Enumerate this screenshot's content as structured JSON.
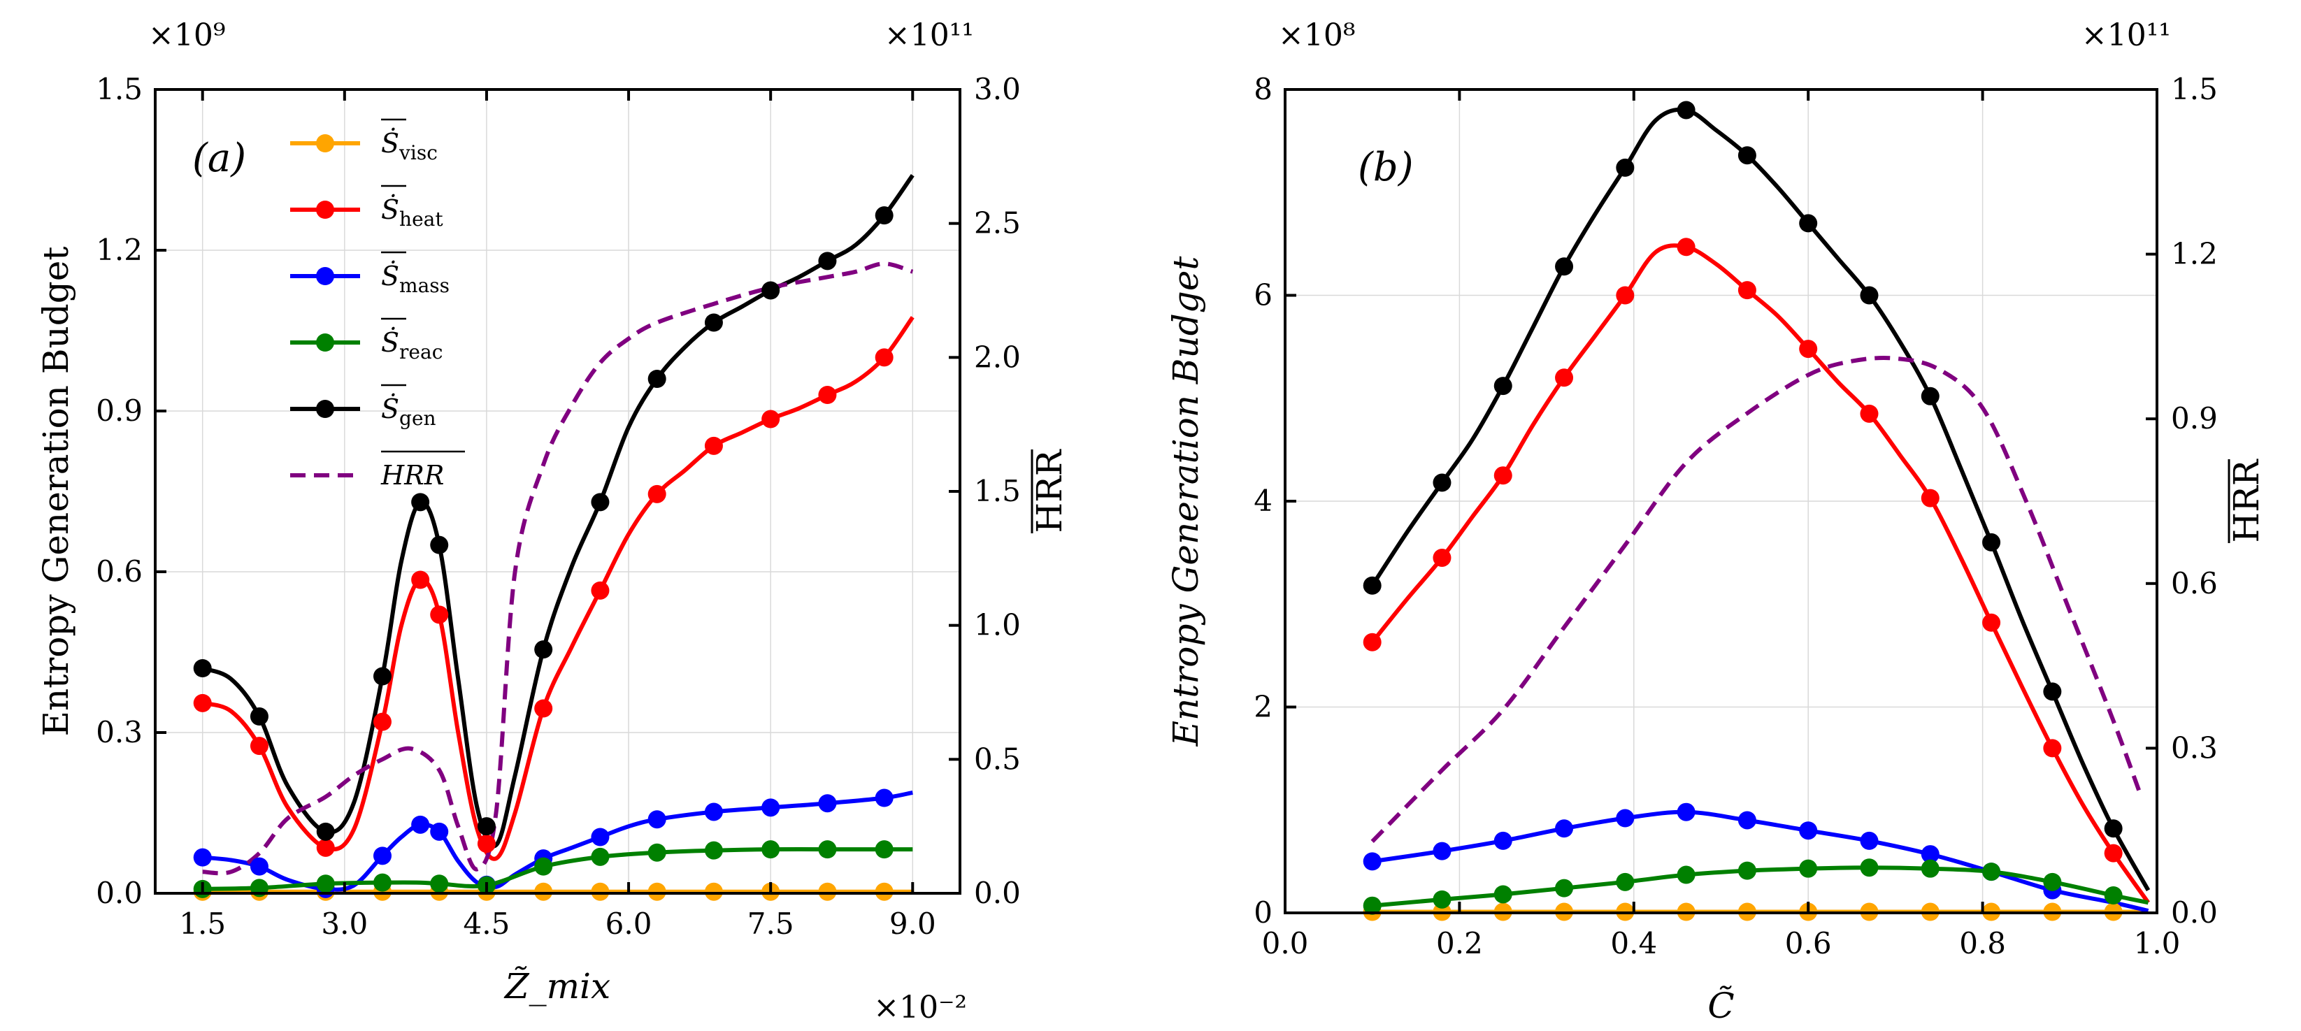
{
  "chart_data": [
    {
      "panel": "(a)",
      "type": "line",
      "xlabel": "Z̃_mix",
      "ylabel": "Entropy Generation Budget",
      "y2label": "HRR",
      "x_scale_label": "×10⁻²",
      "y_scale_label": "×10⁹",
      "y2_scale_label": "×10¹¹",
      "xlim": [
        1.0,
        9.5
      ],
      "ylim": [
        0,
        1.5
      ],
      "y2lim": [
        0,
        3.0
      ],
      "xticks": [
        1.5,
        3.0,
        4.5,
        6.0,
        7.5,
        9.0
      ],
      "xtick_labels": [
        "1.5",
        "3.0",
        "4.5",
        "6.0",
        "7.5",
        "9.0"
      ],
      "yticks": [
        0.0,
        0.3,
        0.6,
        0.9,
        1.2,
        1.5
      ],
      "ytick_labels": [
        "0.0",
        "0.3",
        "0.6",
        "0.9",
        "1.2",
        "1.5"
      ],
      "y2ticks": [
        0.0,
        0.5,
        1.0,
        1.5,
        2.0,
        2.5,
        3.0
      ],
      "y2tick_labels": [
        "0.0",
        "0.5",
        "1.0",
        "1.5",
        "2.0",
        "2.5",
        "3.0"
      ],
      "legend": {
        "location": "top-left",
        "entries": [
          {
            "main": "Ṡ",
            "sub": "visc",
            "color": "#ffa500",
            "style": "line-marker"
          },
          {
            "main": "Ṡ",
            "sub": "heat",
            "color": "#ff0000",
            "style": "line-marker"
          },
          {
            "main": "Ṡ",
            "sub": "mass",
            "color": "#0000ff",
            "style": "line-marker"
          },
          {
            "main": "Ṡ",
            "sub": "reac",
            "color": "#008000",
            "style": "line-marker"
          },
          {
            "main": "Ṡ",
            "sub": "gen",
            "color": "#000000",
            "style": "line-marker"
          },
          {
            "main": "HRR",
            "sub": "",
            "color": "#800080",
            "style": "dashed"
          }
        ]
      },
      "series": [
        {
          "name": "S_visc",
          "color": "#ffa500",
          "axis": "left",
          "x": [
            1.5,
            2.1,
            2.8,
            3.4,
            4.0,
            4.5,
            5.1,
            5.7,
            6.3,
            6.9,
            7.5,
            8.1,
            8.7,
            9.0
          ],
          "y": [
            0.003,
            0.003,
            0.003,
            0.003,
            0.003,
            0.003,
            0.003,
            0.003,
            0.003,
            0.003,
            0.003,
            0.003,
            0.003,
            0.003
          ],
          "markers": [
            1.5,
            2.1,
            2.8,
            3.4,
            4.0,
            4.5,
            5.1,
            5.7,
            6.3,
            6.9,
            7.5,
            8.1,
            8.7
          ]
        },
        {
          "name": "S_heat",
          "color": "#ff0000",
          "axis": "left",
          "x": [
            1.5,
            1.8,
            2.1,
            2.4,
            2.8,
            3.1,
            3.4,
            3.6,
            3.8,
            4.0,
            4.2,
            4.4,
            4.6,
            4.8,
            5.1,
            5.4,
            5.7,
            6.0,
            6.3,
            6.6,
            6.9,
            7.2,
            7.5,
            7.8,
            8.1,
            8.4,
            8.7,
            9.0
          ],
          "y": [
            0.355,
            0.34,
            0.275,
            0.16,
            0.085,
            0.12,
            0.32,
            0.5,
            0.585,
            0.52,
            0.3,
            0.12,
            0.065,
            0.15,
            0.345,
            0.46,
            0.565,
            0.67,
            0.745,
            0.79,
            0.835,
            0.86,
            0.885,
            0.905,
            0.93,
            0.955,
            1.0,
            1.075
          ],
          "markers": [
            1.5,
            2.1,
            2.8,
            3.4,
            3.8,
            4.0,
            4.5,
            5.1,
            5.7,
            6.3,
            6.9,
            7.5,
            8.1,
            8.7
          ]
        },
        {
          "name": "S_mass",
          "color": "#0000ff",
          "axis": "left",
          "x": [
            1.5,
            1.8,
            2.1,
            2.4,
            2.8,
            3.1,
            3.4,
            3.6,
            3.8,
            4.0,
            4.2,
            4.4,
            4.6,
            4.8,
            5.1,
            5.4,
            5.7,
            6.0,
            6.3,
            6.9,
            7.5,
            8.1,
            8.7,
            9.0
          ],
          "y": [
            0.067,
            0.062,
            0.05,
            0.025,
            0.008,
            0.015,
            0.07,
            0.105,
            0.128,
            0.115,
            0.06,
            0.02,
            0.012,
            0.035,
            0.065,
            0.085,
            0.105,
            0.125,
            0.138,
            0.152,
            0.16,
            0.168,
            0.178,
            0.188
          ],
          "markers": [
            1.5,
            2.1,
            2.8,
            3.4,
            3.8,
            4.0,
            4.5,
            5.1,
            5.7,
            6.3,
            6.9,
            7.5,
            8.1,
            8.7
          ]
        },
        {
          "name": "S_reac",
          "color": "#008000",
          "axis": "left",
          "x": [
            1.5,
            2.1,
            2.8,
            3.4,
            3.8,
            4.0,
            4.5,
            5.1,
            5.7,
            6.3,
            6.9,
            7.5,
            8.1,
            8.7,
            9.0
          ],
          "y": [
            0.008,
            0.01,
            0.018,
            0.02,
            0.02,
            0.018,
            0.015,
            0.05,
            0.068,
            0.076,
            0.08,
            0.082,
            0.082,
            0.082,
            0.082
          ],
          "markers": [
            1.5,
            2.1,
            2.8,
            3.4,
            4.0,
            4.5,
            5.1,
            5.7,
            6.3,
            6.9,
            7.5,
            8.1,
            8.7
          ]
        },
        {
          "name": "S_gen",
          "color": "#000000",
          "axis": "left",
          "x": [
            1.5,
            1.8,
            2.1,
            2.4,
            2.8,
            3.1,
            3.4,
            3.6,
            3.8,
            4.0,
            4.2,
            4.4,
            4.6,
            4.8,
            5.1,
            5.4,
            5.7,
            6.0,
            6.3,
            6.6,
            6.9,
            7.2,
            7.5,
            7.8,
            8.1,
            8.4,
            8.7,
            9.0
          ],
          "y": [
            0.42,
            0.4,
            0.33,
            0.2,
            0.115,
            0.17,
            0.405,
            0.62,
            0.73,
            0.65,
            0.4,
            0.16,
            0.09,
            0.22,
            0.455,
            0.61,
            0.73,
            0.87,
            0.96,
            1.02,
            1.065,
            1.095,
            1.125,
            1.15,
            1.18,
            1.21,
            1.265,
            1.34
          ],
          "markers": [
            1.5,
            2.1,
            2.8,
            3.4,
            3.8,
            4.0,
            4.5,
            5.1,
            5.7,
            6.3,
            6.9,
            7.5,
            8.1,
            8.7
          ]
        },
        {
          "name": "HRR",
          "color": "#800080",
          "axis": "right",
          "dashed": true,
          "x": [
            1.5,
            1.8,
            2.1,
            2.4,
            2.8,
            3.1,
            3.4,
            3.7,
            4.0,
            4.2,
            4.4,
            4.6,
            4.8,
            5.1,
            5.4,
            5.7,
            6.0,
            6.3,
            6.9,
            7.5,
            8.1,
            8.4,
            8.7,
            9.0
          ],
          "y": [
            0.08,
            0.08,
            0.15,
            0.28,
            0.36,
            0.44,
            0.5,
            0.54,
            0.46,
            0.25,
            0.09,
            0.3,
            1.2,
            1.6,
            1.82,
            1.98,
            2.07,
            2.13,
            2.2,
            2.26,
            2.3,
            2.32,
            2.35,
            2.32
          ],
          "markers": []
        }
      ]
    },
    {
      "panel": "(b)",
      "type": "line",
      "xlabel": "C̃",
      "ylabel": "Entropy Generation Budget",
      "y2label": "HRR",
      "y_scale_label": "×10⁸",
      "y2_scale_label": "×10¹¹",
      "xlim": [
        0.0,
        1.0
      ],
      "ylim": [
        0,
        8
      ],
      "y2lim": [
        0,
        1.5
      ],
      "xticks": [
        0.0,
        0.2,
        0.4,
        0.6,
        0.8,
        1.0
      ],
      "xtick_labels": [
        "0.0",
        "0.2",
        "0.4",
        "0.6",
        "0.8",
        "1.0"
      ],
      "yticks": [
        0,
        2,
        4,
        6,
        8
      ],
      "ytick_labels": [
        "0",
        "2",
        "4",
        "6",
        "8"
      ],
      "y2ticks": [
        0.0,
        0.3,
        0.6,
        0.9,
        1.2,
        1.5
      ],
      "y2tick_labels": [
        "0.0",
        "0.3",
        "0.6",
        "0.9",
        "1.2",
        "1.5"
      ],
      "series": [
        {
          "name": "S_visc",
          "color": "#ffa500",
          "axis": "left",
          "x": [
            0.1,
            0.18,
            0.25,
            0.32,
            0.39,
            0.46,
            0.53,
            0.6,
            0.67,
            0.74,
            0.81,
            0.88,
            0.95,
            0.99
          ],
          "y": [
            0.01,
            0.01,
            0.01,
            0.01,
            0.01,
            0.01,
            0.01,
            0.01,
            0.01,
            0.01,
            0.01,
            0.01,
            0.01,
            0.01
          ],
          "markers": [
            0.1,
            0.18,
            0.25,
            0.32,
            0.39,
            0.46,
            0.53,
            0.6,
            0.67,
            0.74,
            0.81,
            0.88,
            0.95
          ]
        },
        {
          "name": "S_heat",
          "color": "#ff0000",
          "axis": "left",
          "x": [
            0.1,
            0.14,
            0.18,
            0.215,
            0.25,
            0.285,
            0.32,
            0.355,
            0.39,
            0.425,
            0.46,
            0.495,
            0.53,
            0.565,
            0.6,
            0.635,
            0.67,
            0.705,
            0.74,
            0.775,
            0.81,
            0.845,
            0.88,
            0.915,
            0.95,
            0.99
          ],
          "y": [
            2.63,
            3.05,
            3.45,
            3.85,
            4.25,
            4.75,
            5.2,
            5.6,
            6.0,
            6.42,
            6.47,
            6.3,
            6.05,
            5.8,
            5.48,
            5.15,
            4.85,
            4.45,
            4.03,
            3.45,
            2.82,
            2.2,
            1.6,
            1.05,
            0.58,
            0.1
          ],
          "markers": [
            0.1,
            0.18,
            0.25,
            0.32,
            0.39,
            0.46,
            0.53,
            0.6,
            0.67,
            0.74,
            0.81,
            0.88,
            0.95
          ]
        },
        {
          "name": "S_mass",
          "color": "#0000ff",
          "axis": "left",
          "x": [
            0.1,
            0.18,
            0.25,
            0.32,
            0.39,
            0.46,
            0.53,
            0.6,
            0.67,
            0.74,
            0.81,
            0.88,
            0.95,
            0.99
          ],
          "y": [
            0.5,
            0.6,
            0.7,
            0.82,
            0.92,
            0.98,
            0.9,
            0.8,
            0.7,
            0.57,
            0.4,
            0.22,
            0.1,
            0.02
          ],
          "markers": [
            0.1,
            0.18,
            0.25,
            0.32,
            0.39,
            0.46,
            0.53,
            0.6,
            0.67,
            0.74,
            0.81,
            0.88
          ]
        },
        {
          "name": "S_reac",
          "color": "#008000",
          "axis": "left",
          "x": [
            0.1,
            0.18,
            0.25,
            0.32,
            0.39,
            0.46,
            0.53,
            0.6,
            0.67,
            0.74,
            0.81,
            0.88,
            0.95,
            0.99
          ],
          "y": [
            0.07,
            0.13,
            0.18,
            0.24,
            0.3,
            0.37,
            0.41,
            0.43,
            0.44,
            0.43,
            0.4,
            0.3,
            0.17,
            0.1
          ],
          "markers": [
            0.1,
            0.18,
            0.25,
            0.32,
            0.39,
            0.46,
            0.53,
            0.6,
            0.67,
            0.74,
            0.81,
            0.88,
            0.95
          ]
        },
        {
          "name": "S_gen",
          "color": "#000000",
          "axis": "left",
          "x": [
            0.1,
            0.14,
            0.18,
            0.215,
            0.25,
            0.285,
            0.32,
            0.355,
            0.39,
            0.425,
            0.46,
            0.495,
            0.53,
            0.565,
            0.6,
            0.635,
            0.67,
            0.705,
            0.74,
            0.775,
            0.81,
            0.845,
            0.88,
            0.915,
            0.95,
            0.99
          ],
          "y": [
            3.18,
            3.7,
            4.18,
            4.6,
            5.12,
            5.7,
            6.28,
            6.78,
            7.24,
            7.7,
            7.8,
            7.6,
            7.36,
            7.05,
            6.7,
            6.35,
            6.0,
            5.55,
            5.02,
            4.32,
            3.6,
            2.85,
            2.15,
            1.45,
            0.82,
            0.22
          ],
          "markers": [
            0.1,
            0.18,
            0.25,
            0.32,
            0.39,
            0.46,
            0.53,
            0.6,
            0.67,
            0.74,
            0.81,
            0.88,
            0.95
          ]
        },
        {
          "name": "HRR",
          "color": "#800080",
          "axis": "right",
          "dashed": true,
          "x": [
            0.1,
            0.18,
            0.25,
            0.32,
            0.39,
            0.46,
            0.53,
            0.6,
            0.65,
            0.7,
            0.75,
            0.8,
            0.85,
            0.9,
            0.95,
            0.98
          ],
          "y": [
            0.13,
            0.26,
            0.37,
            0.52,
            0.67,
            0.82,
            0.91,
            0.98,
            1.005,
            1.01,
            0.99,
            0.92,
            0.75,
            0.55,
            0.35,
            0.22
          ],
          "markers": []
        }
      ]
    }
  ]
}
